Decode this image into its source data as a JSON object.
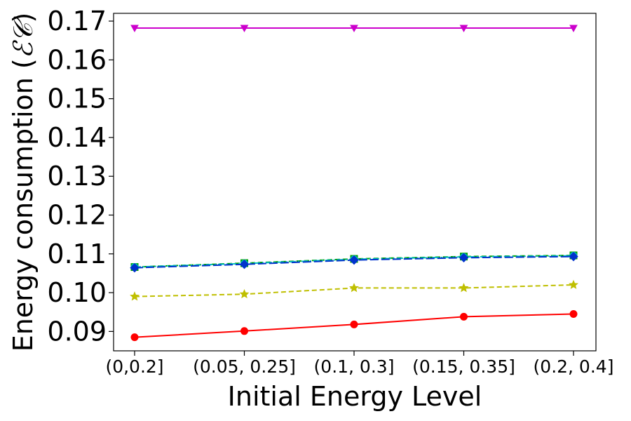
{
  "chart_data": {
    "type": "line",
    "xlabel": "Initial Energy Level",
    "ylabel_prefix": "Energy consumption (",
    "ylabel_symbol": "ℰ𝒞",
    "ylabel_suffix": ")",
    "categories": [
      "(0,0.2]",
      "(0.05, 0.25]",
      "(0.1, 0.3]",
      "(0.15, 0.35]",
      "(0.2, 0.4]"
    ],
    "ylim": [
      0.085,
      0.172
    ],
    "yticks": [
      0.09,
      0.1,
      0.11,
      0.12,
      0.13,
      0.14,
      0.15,
      0.16,
      0.17
    ],
    "ytick_labels": [
      "0.09",
      "0.10",
      "0.11",
      "0.12",
      "0.13",
      "0.14",
      "0.15",
      "0.16",
      "0.17"
    ],
    "grid": false,
    "series": [
      {
        "color": "#cc00cc",
        "marker": "triangle-down",
        "dash": "solid",
        "values": [
          0.1682,
          0.1682,
          0.1682,
          0.1682,
          0.1682
        ]
      },
      {
        "color": "#00a000",
        "marker": "square",
        "dash": "dashed",
        "values": [
          0.1066,
          0.1076,
          0.1087,
          0.1093,
          0.1096
        ]
      },
      {
        "color": "#00bfbf",
        "marker": "circle",
        "dash": "dashdot",
        "values": [
          0.1066,
          0.1075,
          0.1086,
          0.1092,
          0.1095
        ]
      },
      {
        "color": "#0033cc",
        "marker": "diamond",
        "dash": "longdash",
        "values": [
          0.1064,
          0.1073,
          0.1084,
          0.109,
          0.1093
        ]
      },
      {
        "color": "#bfbf00",
        "marker": "star",
        "dash": "dashed",
        "values": [
          0.099,
          0.0996,
          0.1012,
          0.1012,
          0.102
        ]
      },
      {
        "color": "#ff0000",
        "marker": "circle",
        "dash": "solid",
        "values": [
          0.0885,
          0.0901,
          0.0918,
          0.0938,
          0.0945
        ]
      }
    ]
  }
}
